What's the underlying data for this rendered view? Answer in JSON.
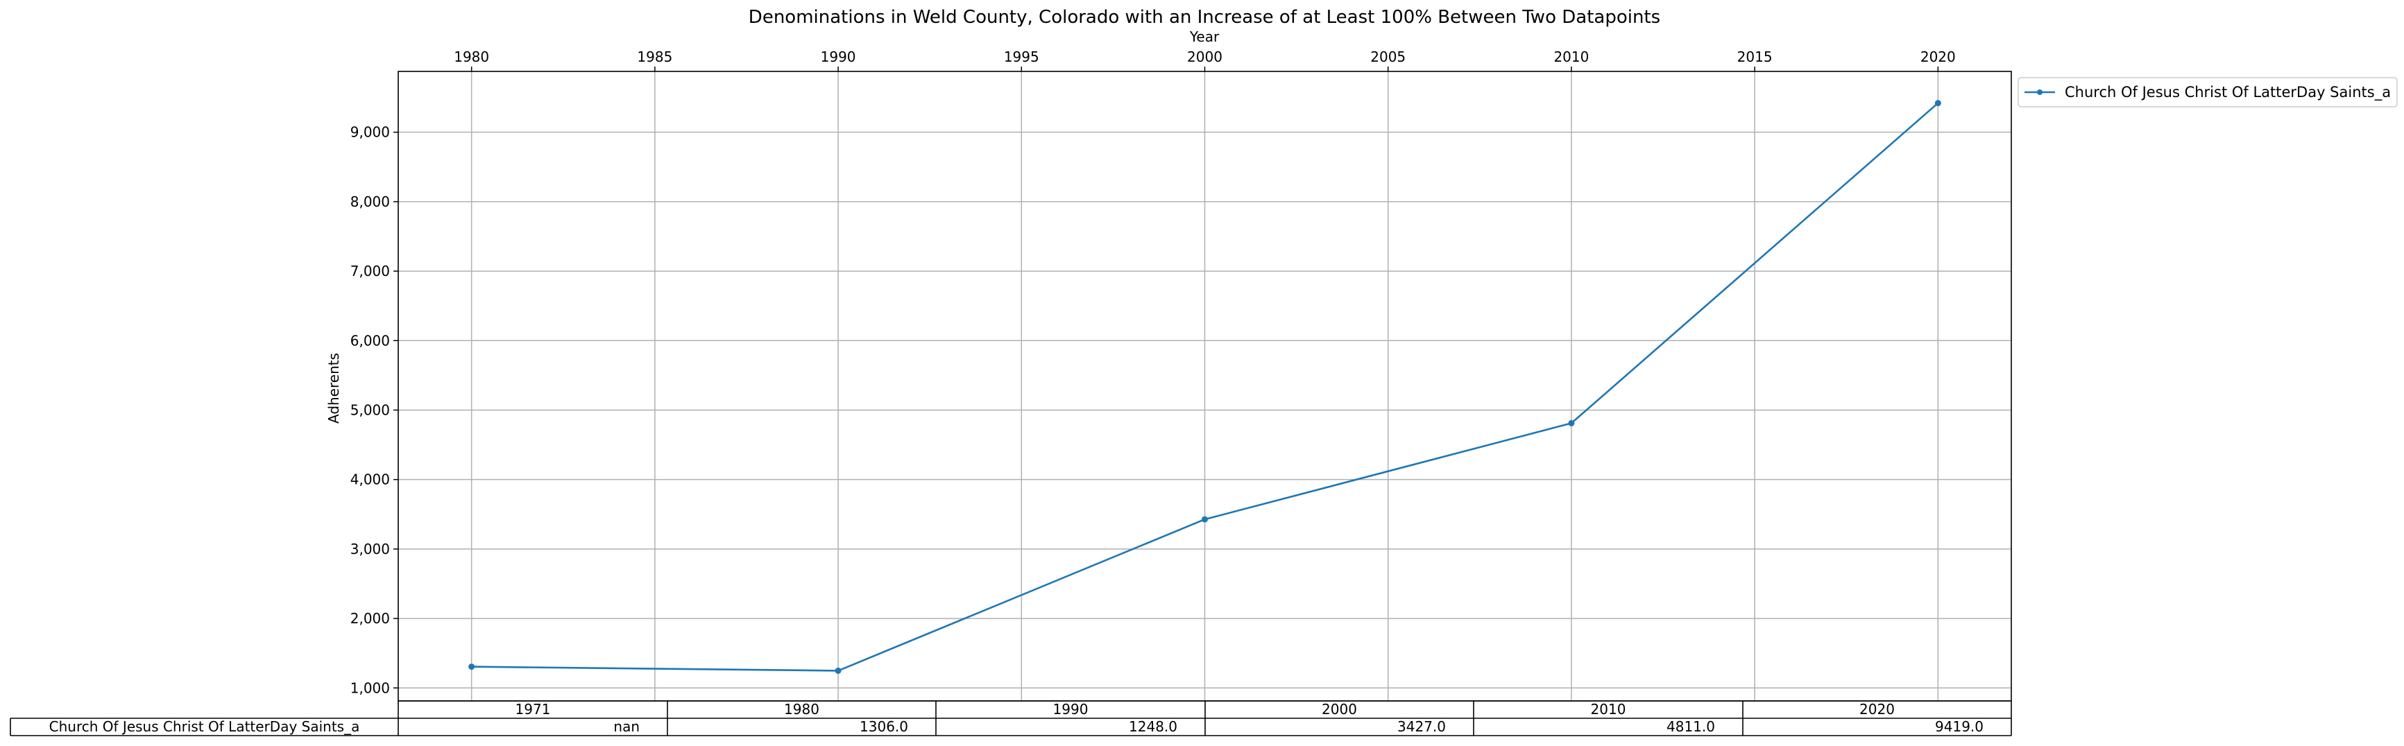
{
  "chart_data": {
    "type": "line",
    "title": "Denominations in Weld County, Colorado with an Increase of at Least 100% Between Two Datapoints",
    "xlabel": "Year",
    "ylabel": "Adherents",
    "x_axis_position": "top",
    "x_ticks": [
      1980,
      1985,
      1990,
      1995,
      2000,
      2005,
      2010,
      2015,
      2020
    ],
    "x_range": [
      1978,
      2022
    ],
    "y_ticks": [
      "1,000",
      "2,000",
      "3,000",
      "4,000",
      "5,000",
      "6,000",
      "7,000",
      "8,000",
      "9,000"
    ],
    "y_tick_values": [
      1000,
      2000,
      3000,
      4000,
      5000,
      6000,
      7000,
      8000,
      9000
    ],
    "y_range": [
      813,
      9875
    ],
    "grid": true,
    "legend_position": "outside-top-right",
    "series": [
      {
        "name": "Church Of Jesus Christ Of LatterDay Saints_a",
        "color": "#1f77b4",
        "x": [
          1980,
          1990,
          2000,
          2010,
          2020
        ],
        "values": [
          1306,
          1248,
          3427,
          4811,
          9419
        ]
      }
    ],
    "table": {
      "columns": [
        "1971",
        "1980",
        "1990",
        "2000",
        "2010",
        "2020"
      ],
      "rows": [
        {
          "label": "Church Of Jesus Christ Of LatterDay Saints_a",
          "cells": [
            "nan",
            "1306.0",
            "1248.0",
            "3427.0",
            "4811.0",
            "9419.0"
          ]
        }
      ]
    }
  }
}
